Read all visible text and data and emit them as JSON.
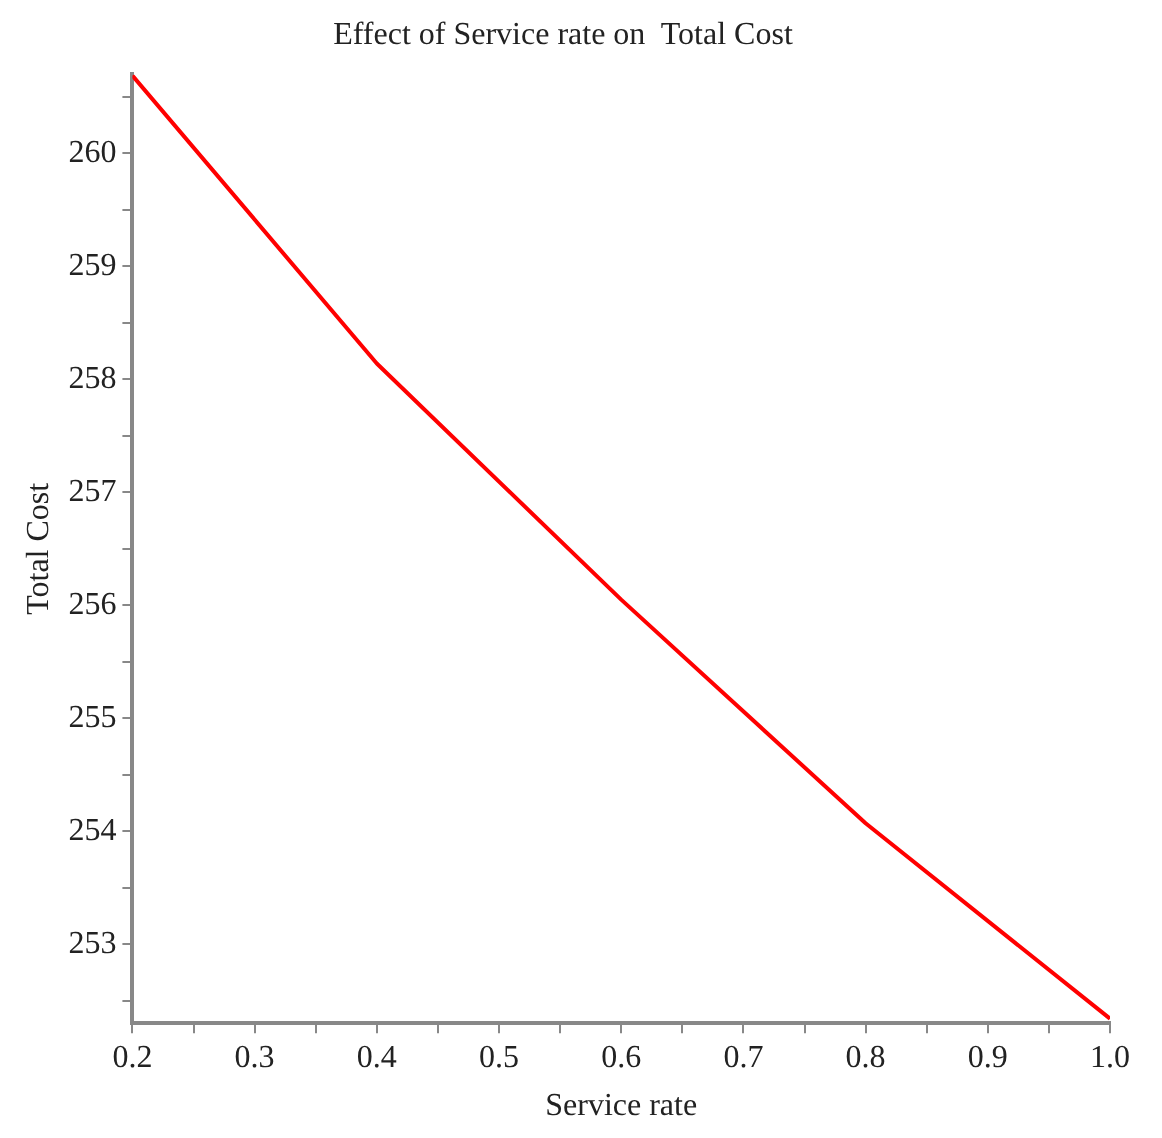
{
  "chart_data": {
    "type": "line",
    "title": "Effect of Service rate on  Total Cost",
    "xlabel": "Service rate",
    "ylabel": "Total Cost",
    "x": [
      0.2,
      0.4,
      0.6,
      0.8,
      1.0
    ],
    "series": [
      {
        "color": "#ff0000",
        "values": [
          260.69,
          258.14,
          256.05,
          254.07,
          252.34
        ]
      }
    ],
    "xlim": [
      0.2,
      1.0
    ],
    "xticks": [
      {
        "value": 0.2,
        "label": "0.2"
      },
      {
        "value": 0.25,
        "label": null
      },
      {
        "value": 0.3,
        "label": "0.3"
      },
      {
        "value": 0.35,
        "label": null
      },
      {
        "value": 0.4,
        "label": "0.4"
      },
      {
        "value": 0.45,
        "label": null
      },
      {
        "value": 0.5,
        "label": "0.5"
      },
      {
        "value": 0.55,
        "label": null
      },
      {
        "value": 0.6,
        "label": "0.6"
      },
      {
        "value": 0.65,
        "label": null
      },
      {
        "value": 0.7,
        "label": "0.7"
      },
      {
        "value": 0.75,
        "label": null
      },
      {
        "value": 0.8,
        "label": "0.8"
      },
      {
        "value": 0.85,
        "label": null
      },
      {
        "value": 0.9,
        "label": "0.9"
      },
      {
        "value": 0.95,
        "label": null
      },
      {
        "value": 1.0,
        "label": "1.0"
      }
    ],
    "ylim": [
      252.3,
      260.7
    ],
    "yticks": [
      {
        "value": 252.5,
        "label": null
      },
      253,
      {
        "value": 253.5,
        "label": null
      },
      254,
      {
        "value": 254.5,
        "label": null
      },
      255,
      {
        "value": 255.5,
        "label": null
      },
      256,
      {
        "value": 256.5,
        "label": null
      },
      257,
      {
        "value": 257.5,
        "label": null
      },
      258,
      {
        "value": 258.5,
        "label": null
      },
      259,
      {
        "value": 259.5,
        "label": null
      },
      260,
      {
        "value": 260.5,
        "label": null
      }
    ],
    "grid": false,
    "legend": false,
    "marker": "none",
    "line_style": "solid"
  }
}
